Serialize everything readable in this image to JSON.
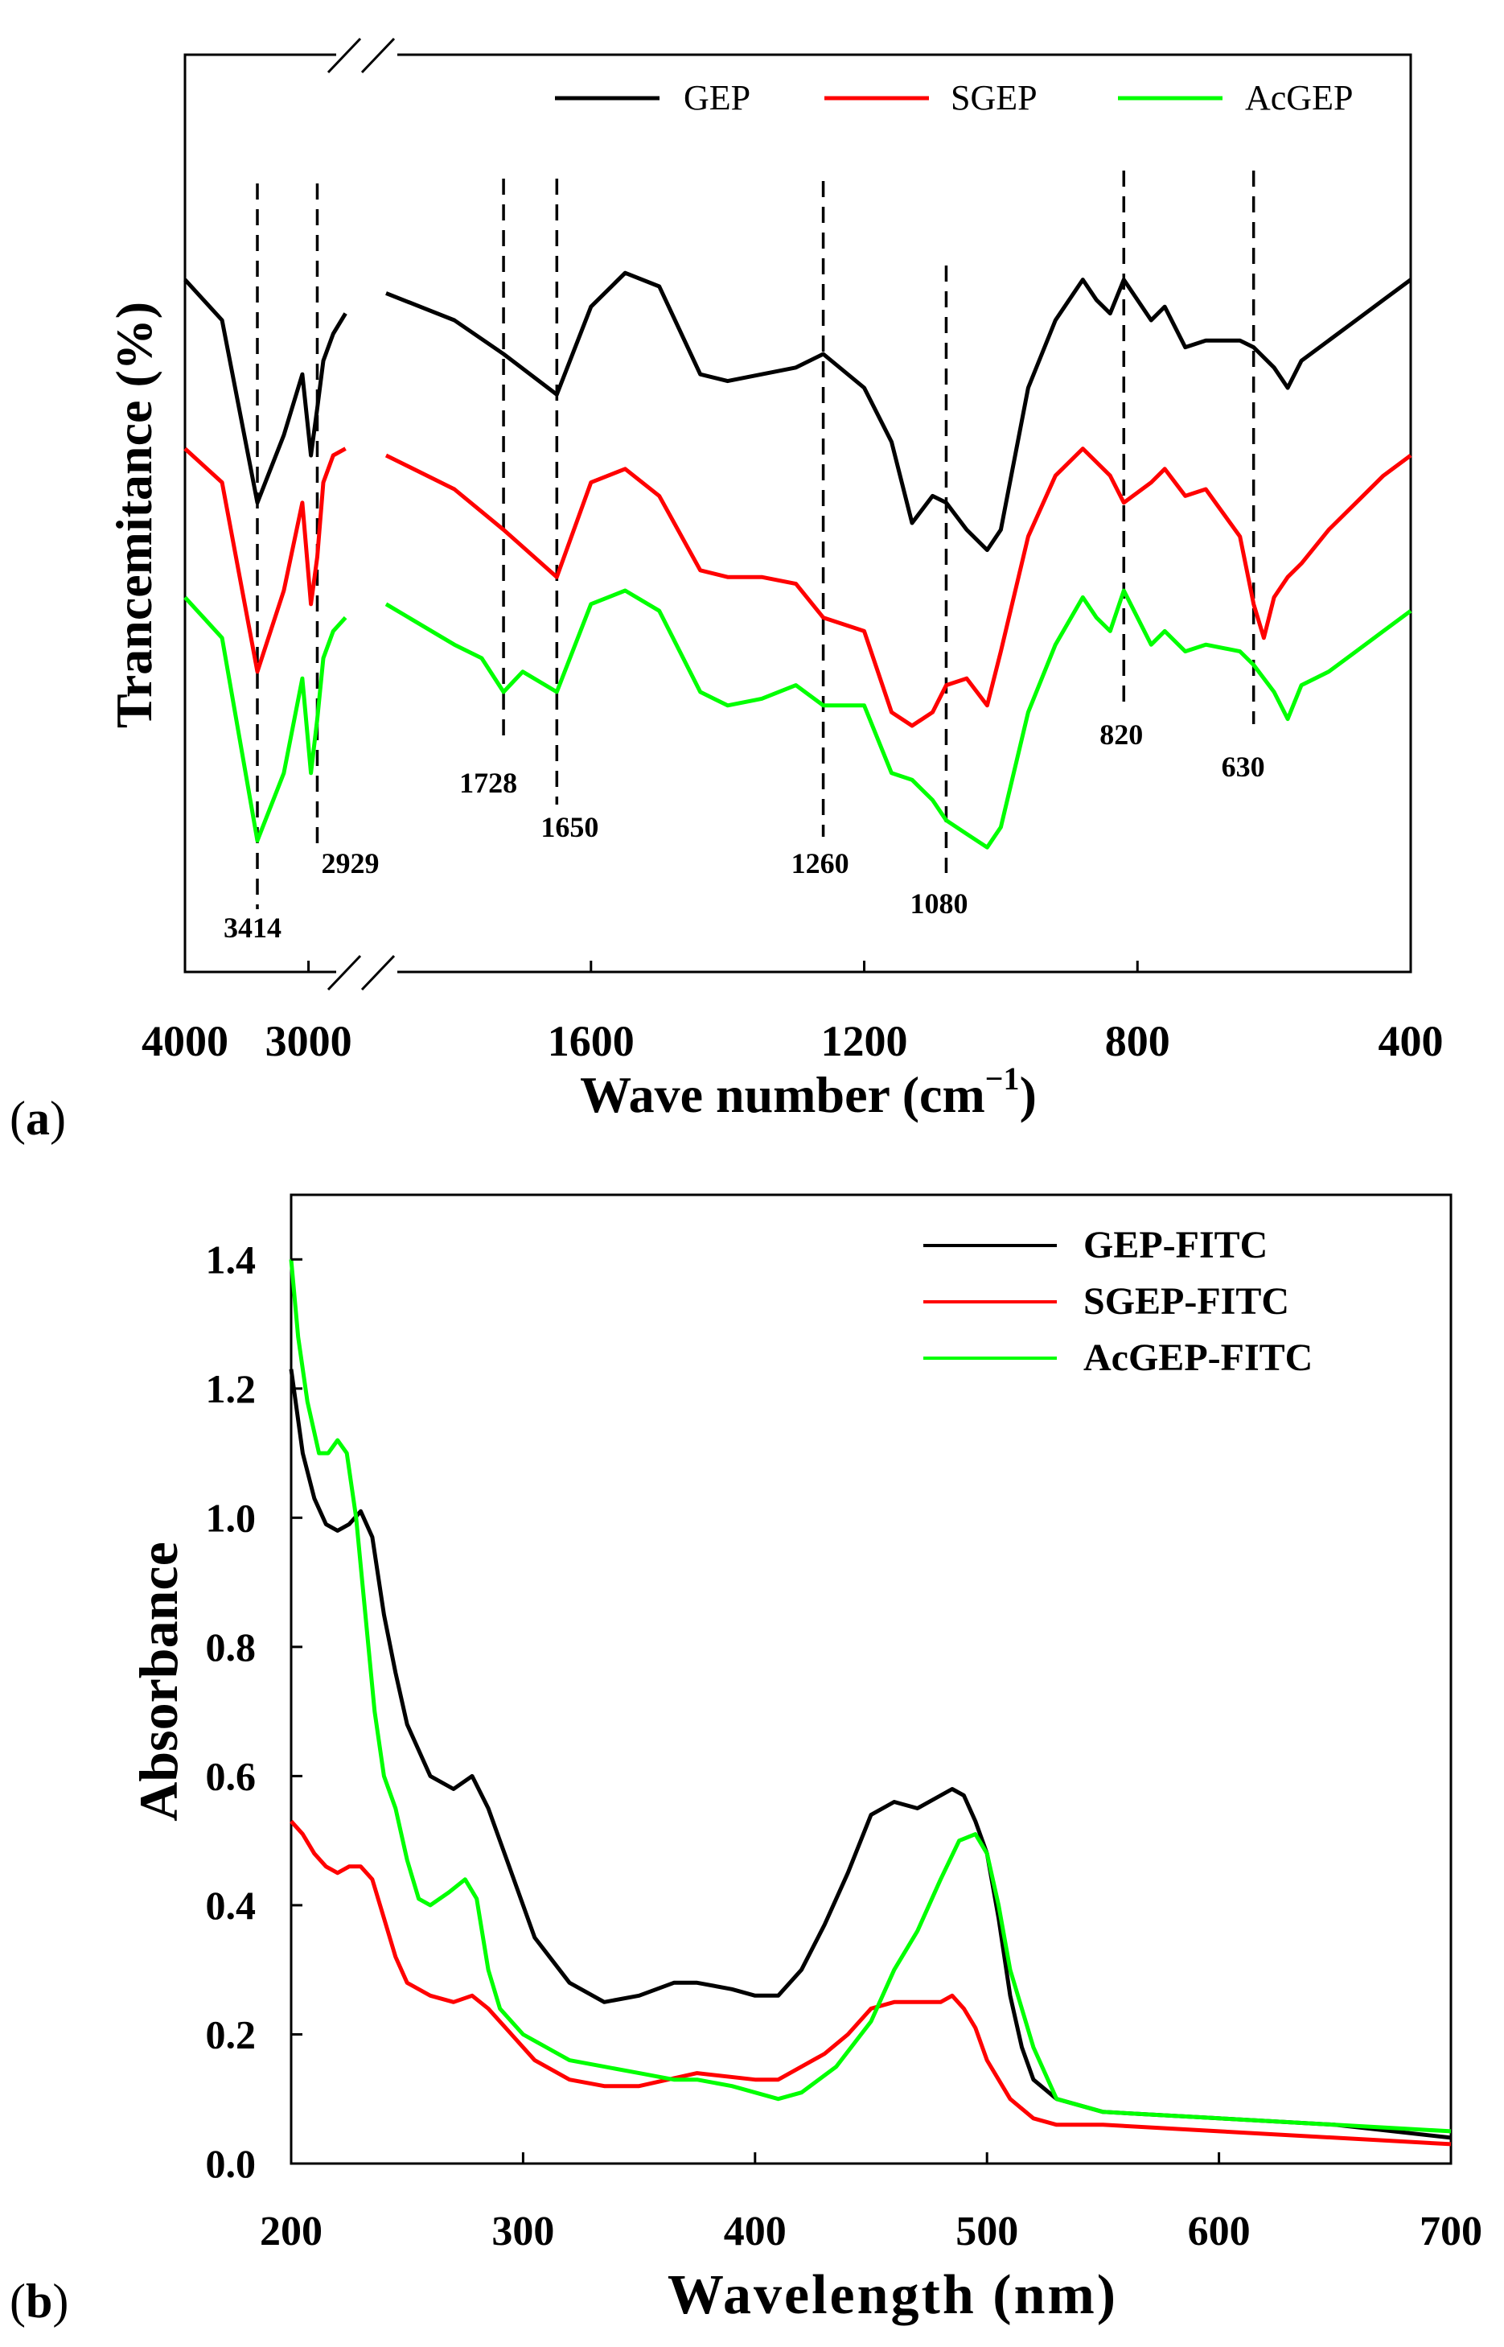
{
  "chart_data": [
    {
      "type": "line",
      "panel_label": "(a)",
      "panel_letter": "a",
      "xlabel": "Wave number (cm",
      "xlabel_sup": "−1",
      "xlabel_close": ")",
      "ylabel": "Trancemitance (%)",
      "x_tick_labels": [
        "4000",
        "3000",
        "1600",
        "1200",
        "800",
        "400"
      ],
      "x_break": true,
      "x_segments": [
        {
          "range": [
            4000,
            2600
          ],
          "ticks": [
            4000,
            3000
          ]
        },
        {
          "range": [
            1900,
            400
          ],
          "ticks": [
            1600,
            1200,
            800,
            400
          ]
        }
      ],
      "legend": [
        "GEP",
        "SGEP",
        "AcGEP"
      ],
      "colors": {
        "GEP": "#000000",
        "SGEP": "#ff0000",
        "AcGEP": "#00ff00"
      },
      "annotations": [
        {
          "x": 3414,
          "label": "3414"
        },
        {
          "x": 2929,
          "label": "2929"
        },
        {
          "x": 1728,
          "label": "1728"
        },
        {
          "x": 1650,
          "label": "1650"
        },
        {
          "x": 1260,
          "label": "1260"
        },
        {
          "x": 1080,
          "label": "1080"
        },
        {
          "x": 820,
          "label": "820"
        },
        {
          "x": 630,
          "label": "630"
        }
      ],
      "series": [
        {
          "name": "GEP",
          "x": [
            4000,
            3700,
            3414,
            3200,
            3050,
            2980,
            2929,
            2880,
            2800,
            2700,
            1900,
            1800,
            1728,
            1650,
            1600,
            1550,
            1500,
            1440,
            1400,
            1350,
            1300,
            1260,
            1200,
            1160,
            1130,
            1100,
            1080,
            1050,
            1020,
            1000,
            960,
            920,
            880,
            860,
            840,
            820,
            780,
            760,
            730,
            700,
            650,
            630,
            600,
            580,
            560,
            520,
            480,
            440,
            400
          ],
          "y": [
            86,
            80,
            53,
            63,
            72,
            60,
            67,
            74,
            78,
            81,
            84,
            80,
            75,
            69,
            82,
            87,
            85,
            72,
            71,
            72,
            73,
            75,
            70,
            62,
            50,
            54,
            53,
            49,
            46,
            49,
            70,
            80,
            86,
            83,
            81,
            86,
            80,
            82,
            76,
            77,
            77,
            76,
            73,
            70,
            74,
            77,
            80,
            83,
            86
          ]
        },
        {
          "name": "SGEP",
          "x": [
            4000,
            3700,
            3414,
            3200,
            3050,
            2980,
            2929,
            2880,
            2800,
            2700,
            1900,
            1800,
            1728,
            1650,
            1600,
            1550,
            1500,
            1440,
            1400,
            1350,
            1300,
            1260,
            1200,
            1160,
            1130,
            1100,
            1080,
            1050,
            1020,
            1000,
            960,
            920,
            880,
            860,
            840,
            820,
            780,
            760,
            730,
            700,
            650,
            630,
            615,
            600,
            580,
            560,
            520,
            480,
            440,
            400
          ],
          "y": [
            61,
            56,
            28,
            40,
            53,
            38,
            45,
            56,
            60,
            61,
            60,
            55,
            49,
            42,
            56,
            58,
            54,
            43,
            42,
            42,
            41,
            36,
            34,
            22,
            20,
            22,
            26,
            27,
            23,
            31,
            48,
            57,
            61,
            59,
            57,
            53,
            56,
            58,
            54,
            55,
            48,
            38,
            33,
            39,
            42,
            44,
            49,
            53,
            57,
            60
          ]
        },
        {
          "name": "AcGEP",
          "x": [
            4000,
            3700,
            3414,
            3200,
            3050,
            2980,
            2929,
            2880,
            2800,
            2700,
            1900,
            1800,
            1760,
            1728,
            1700,
            1650,
            1600,
            1550,
            1500,
            1440,
            1400,
            1350,
            1300,
            1260,
            1200,
            1160,
            1130,
            1100,
            1080,
            1050,
            1020,
            1000,
            960,
            920,
            880,
            860,
            840,
            820,
            780,
            760,
            730,
            700,
            650,
            630,
            600,
            580,
            560,
            520,
            480,
            440,
            400
          ],
          "y": [
            39,
            33,
            3,
            13,
            27,
            13,
            21,
            30,
            34,
            36,
            38,
            32,
            30,
            25,
            28,
            25,
            38,
            40,
            37,
            25,
            23,
            24,
            26,
            23,
            23,
            13,
            12,
            9,
            6,
            4,
            2,
            5,
            22,
            32,
            39,
            36,
            34,
            40,
            32,
            34,
            31,
            32,
            31,
            29,
            25,
            21,
            26,
            28,
            31,
            34,
            37
          ]
        }
      ]
    },
    {
      "type": "line",
      "panel_label": "(b)",
      "panel_letter": "b",
      "xlabel": "Wavelength (nm)",
      "ylabel": "Absorbance",
      "xlim": [
        200,
        700
      ],
      "ylim": [
        0.0,
        1.5
      ],
      "x_ticks": [
        200,
        300,
        400,
        500,
        600,
        700
      ],
      "x_tick_labels": [
        "200",
        "300",
        "400",
        "500",
        "600",
        "700"
      ],
      "y_ticks": [
        0.0,
        0.2,
        0.4,
        0.6,
        0.8,
        1.0,
        1.2,
        1.4
      ],
      "y_tick_labels": [
        "0.0",
        "0.2",
        "0.4",
        "0.6",
        "0.8",
        "1.0",
        "1.2",
        "1.4"
      ],
      "legend": [
        "GEP-FITC",
        "SGEP-FITC",
        "AcGEP-FITC"
      ],
      "colors": {
        "GEP-FITC": "#000000",
        "SGEP-FITC": "#ff0000",
        "AcGEP-FITC": "#00ff00"
      },
      "series": [
        {
          "name": "GEP-FITC",
          "x": [
            200,
            205,
            210,
            215,
            220,
            225,
            230,
            235,
            240,
            245,
            250,
            260,
            270,
            278,
            285,
            295,
            305,
            320,
            335,
            350,
            365,
            375,
            390,
            400,
            410,
            420,
            430,
            440,
            450,
            460,
            470,
            480,
            485,
            490,
            495,
            500,
            505,
            510,
            515,
            520,
            530,
            550,
            600,
            650,
            700
          ],
          "y": [
            1.23,
            1.1,
            1.03,
            0.99,
            0.98,
            0.99,
            1.01,
            0.97,
            0.85,
            0.76,
            0.68,
            0.6,
            0.58,
            0.6,
            0.55,
            0.45,
            0.35,
            0.28,
            0.25,
            0.26,
            0.28,
            0.28,
            0.27,
            0.26,
            0.26,
            0.3,
            0.37,
            0.45,
            0.54,
            0.56,
            0.55,
            0.57,
            0.58,
            0.57,
            0.53,
            0.48,
            0.38,
            0.26,
            0.18,
            0.13,
            0.1,
            0.08,
            0.07,
            0.06,
            0.04
          ]
        },
        {
          "name": "SGEP-FITC",
          "x": [
            200,
            205,
            210,
            215,
            220,
            225,
            230,
            235,
            240,
            245,
            250,
            260,
            270,
            278,
            285,
            295,
            305,
            320,
            335,
            350,
            375,
            400,
            410,
            420,
            430,
            440,
            450,
            460,
            470,
            480,
            485,
            490,
            495,
            500,
            510,
            520,
            530,
            550,
            600,
            650,
            700
          ],
          "y": [
            0.53,
            0.51,
            0.48,
            0.46,
            0.45,
            0.46,
            0.46,
            0.44,
            0.38,
            0.32,
            0.28,
            0.26,
            0.25,
            0.26,
            0.24,
            0.2,
            0.16,
            0.13,
            0.12,
            0.12,
            0.14,
            0.13,
            0.13,
            0.15,
            0.17,
            0.2,
            0.24,
            0.25,
            0.25,
            0.25,
            0.26,
            0.24,
            0.21,
            0.16,
            0.1,
            0.07,
            0.06,
            0.06,
            0.05,
            0.04,
            0.03
          ]
        },
        {
          "name": "AcGEP-FITC",
          "x": [
            200,
            203,
            207,
            212,
            216,
            220,
            224,
            228,
            232,
            236,
            240,
            245,
            250,
            255,
            260,
            268,
            275,
            280,
            285,
            290,
            300,
            310,
            320,
            335,
            350,
            365,
            375,
            390,
            400,
            410,
            420,
            435,
            450,
            460,
            470,
            480,
            488,
            495,
            500,
            505,
            510,
            520,
            530,
            550,
            600,
            650,
            700
          ],
          "y": [
            1.4,
            1.28,
            1.18,
            1.1,
            1.1,
            1.12,
            1.1,
            1.0,
            0.85,
            0.7,
            0.6,
            0.55,
            0.47,
            0.41,
            0.4,
            0.42,
            0.44,
            0.41,
            0.3,
            0.24,
            0.2,
            0.18,
            0.16,
            0.15,
            0.14,
            0.13,
            0.13,
            0.12,
            0.11,
            0.1,
            0.11,
            0.15,
            0.22,
            0.3,
            0.36,
            0.44,
            0.5,
            0.51,
            0.48,
            0.4,
            0.3,
            0.18,
            0.1,
            0.08,
            0.07,
            0.06,
            0.05
          ]
        }
      ]
    }
  ]
}
